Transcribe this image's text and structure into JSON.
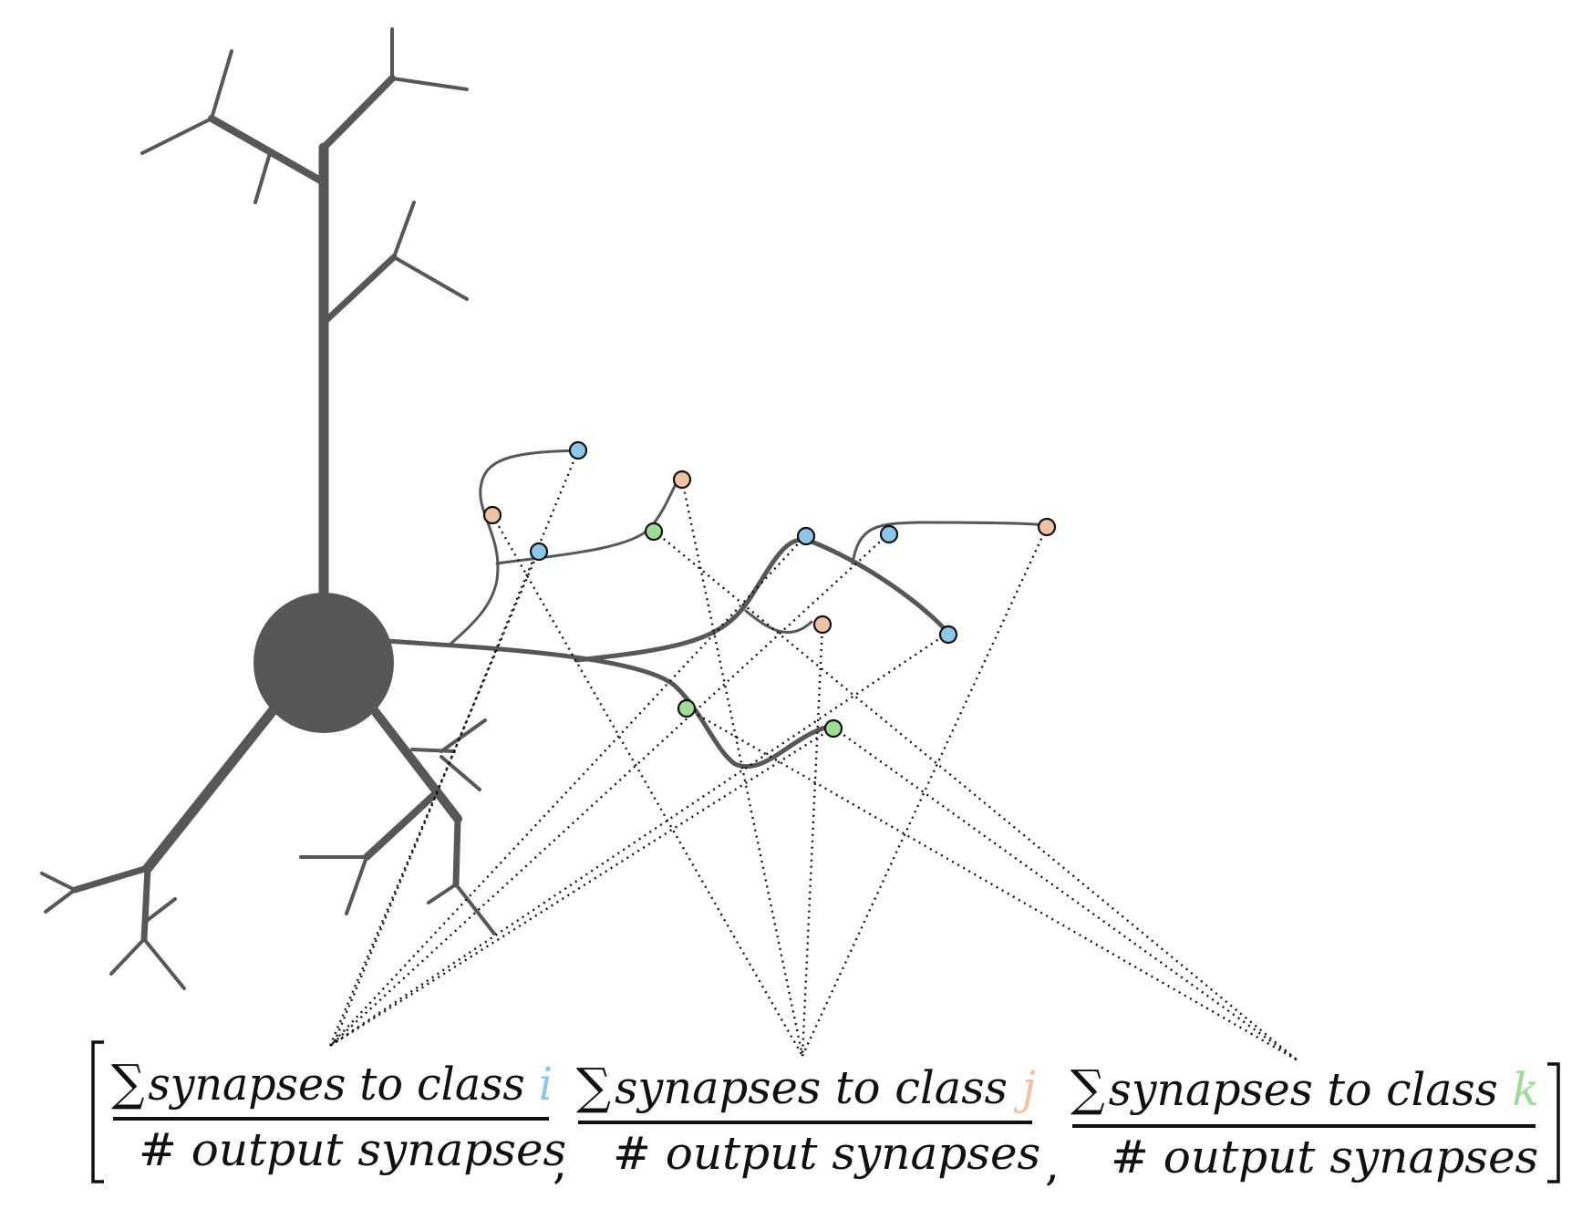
{
  "formula": {
    "terms": [
      {
        "sigma": "∑",
        "numerator": "synapses to class ",
        "variable": "i",
        "color": "#8ec6e8",
        "denominator": "# output synapses"
      },
      {
        "sigma": "∑",
        "numerator": "synapses to class ",
        "variable": "j",
        "color": "#eec2a4",
        "denominator": "# output synapses"
      },
      {
        "sigma": "∑",
        "numerator": "synapses to class ",
        "variable": "k",
        "color": "#9edd96",
        "denominator": "# output synapses"
      }
    ],
    "separator": ","
  },
  "colors": {
    "neuron": "#575757",
    "class_i": "#8ec6e8",
    "class_j": "#eec2a4",
    "class_k": "#9edd96",
    "ink": "#111111"
  }
}
